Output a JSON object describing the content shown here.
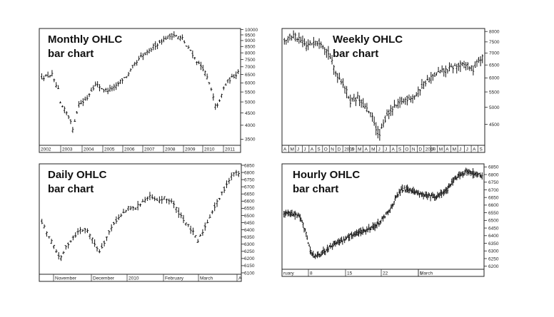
{
  "chart_data": [
    {
      "type": "ohlc",
      "title_lines": [
        "Monthly OHLC",
        "bar chart"
      ],
      "x_labels": [
        "2002",
        "2003",
        "2004",
        "2005",
        "2006",
        "2007",
        "2008",
        "2009",
        "2010",
        "2011"
      ],
      "y_ticks": [
        "10000",
        "9500",
        "9000",
        "8500",
        "8000",
        "7500",
        "7000",
        "6500",
        "6000",
        "5500",
        "5000",
        "4500",
        "4000",
        "3500"
      ],
      "y_ticks_values": [
        10000,
        9500,
        9000,
        8500,
        8000,
        7500,
        7000,
        6500,
        6000,
        5500,
        5000,
        4500,
        4000,
        3500
      ],
      "ylim": [
        3300,
        10100
      ],
      "y_scale": "log",
      "close_path": [
        [
          0,
          6300
        ],
        [
          3,
          6400
        ],
        [
          5,
          6500
        ],
        [
          6,
          6100
        ],
        [
          8,
          5600
        ],
        [
          9,
          4900
        ],
        [
          12,
          4500
        ],
        [
          14,
          4200
        ],
        [
          15,
          3800
        ],
        [
          16,
          4200
        ],
        [
          18,
          4900
        ],
        [
          20,
          5000
        ],
        [
          22,
          5200
        ],
        [
          24,
          5600
        ],
        [
          26,
          5900
        ],
        [
          28,
          5800
        ],
        [
          30,
          5600
        ],
        [
          32,
          5600
        ],
        [
          34,
          5700
        ],
        [
          36,
          5800
        ],
        [
          38,
          6100
        ],
        [
          40,
          6300
        ],
        [
          42,
          6500
        ],
        [
          44,
          7000
        ],
        [
          46,
          7300
        ],
        [
          48,
          7700
        ],
        [
          50,
          7900
        ],
        [
          52,
          8100
        ],
        [
          54,
          8500
        ],
        [
          56,
          8700
        ],
        [
          58,
          9000
        ],
        [
          60,
          9200
        ],
        [
          62,
          9400
        ],
        [
          64,
          9500
        ],
        [
          66,
          9300
        ],
        [
          68,
          9200
        ],
        [
          70,
          8500
        ],
        [
          72,
          8200
        ],
        [
          74,
          7600
        ],
        [
          76,
          7200
        ],
        [
          78,
          6900
        ],
        [
          80,
          6300
        ],
        [
          82,
          5600
        ],
        [
          84,
          4800
        ],
        [
          86,
          5000
        ],
        [
          88,
          5700
        ],
        [
          90,
          6100
        ],
        [
          92,
          6300
        ],
        [
          94,
          6500
        ],
        [
          95,
          6700
        ]
      ],
      "x_count": 96
    },
    {
      "type": "ohlc",
      "title_lines": [
        "Weekly OHLC",
        "bar chart"
      ],
      "x_labels": [
        "A",
        "M",
        "J",
        "J",
        "A",
        "S",
        "O",
        "N",
        "D",
        "2009",
        "J",
        "M",
        "A",
        "M",
        "J",
        "J",
        "A",
        "S",
        "O",
        "N",
        "D",
        "2010",
        "F",
        "M",
        "A",
        "M",
        "J",
        "J",
        "A",
        "S"
      ],
      "y_ticks": [
        "8000",
        "7500",
        "7000",
        "6500",
        "6000",
        "5500",
        "5000",
        "4500"
      ],
      "y_ticks_values": [
        8000,
        7500,
        7000,
        6500,
        6000,
        5500,
        5000,
        4500
      ],
      "ylim": [
        3950,
        8150
      ],
      "y_scale": "log",
      "close_path": [
        [
          0,
          7600
        ],
        [
          5,
          7800
        ],
        [
          8,
          7600
        ],
        [
          12,
          7300
        ],
        [
          16,
          7500
        ],
        [
          20,
          7500
        ],
        [
          24,
          7000
        ],
        [
          28,
          6200
        ],
        [
          32,
          5800
        ],
        [
          36,
          5200
        ],
        [
          40,
          5300
        ],
        [
          44,
          5000
        ],
        [
          48,
          4700
        ],
        [
          50,
          4400
        ],
        [
          52,
          4200
        ],
        [
          54,
          4500
        ],
        [
          56,
          4800
        ],
        [
          60,
          5000
        ],
        [
          64,
          5200
        ],
        [
          68,
          5300
        ],
        [
          72,
          5400
        ],
        [
          76,
          5800
        ],
        [
          80,
          6000
        ],
        [
          84,
          6200
        ],
        [
          88,
          6300
        ],
        [
          92,
          6400
        ],
        [
          96,
          6500
        ],
        [
          100,
          6500
        ],
        [
          103,
          6300
        ],
        [
          106,
          6700
        ],
        [
          108,
          6800
        ]
      ],
      "x_count": 109
    },
    {
      "type": "ohlc",
      "title_lines": [
        "Daily OHLC",
        "bar chart"
      ],
      "x_labels": [
        "November",
        "December",
        "2010",
        "February",
        "March",
        "A"
      ],
      "y_ticks": [
        "6850",
        "6800",
        "6750",
        "6700",
        "6650",
        "6600",
        "6550",
        "6500",
        "6450",
        "6400",
        "6350",
        "6300",
        "6250",
        "6200",
        "6150",
        "6100"
      ],
      "y_ticks_values": [
        6850,
        6800,
        6750,
        6700,
        6650,
        6600,
        6550,
        6500,
        6450,
        6400,
        6350,
        6300,
        6250,
        6200,
        6150,
        6100
      ],
      "ylim": [
        6090,
        6860
      ],
      "y_scale": "linear",
      "close_path": [
        [
          0,
          6450
        ],
        [
          3,
          6350
        ],
        [
          6,
          6250
        ],
        [
          8,
          6200
        ],
        [
          10,
          6280
        ],
        [
          13,
          6350
        ],
        [
          16,
          6400
        ],
        [
          19,
          6400
        ],
        [
          22,
          6300
        ],
        [
          24,
          6250
        ],
        [
          27,
          6350
        ],
        [
          30,
          6450
        ],
        [
          33,
          6500
        ],
        [
          36,
          6550
        ],
        [
          39,
          6550
        ],
        [
          42,
          6600
        ],
        [
          45,
          6630
        ],
        [
          48,
          6600
        ],
        [
          51,
          6620
        ],
        [
          54,
          6600
        ],
        [
          57,
          6520
        ],
        [
          60,
          6450
        ],
        [
          63,
          6380
        ],
        [
          65,
          6320
        ],
        [
          68,
          6420
        ],
        [
          71,
          6530
        ],
        [
          74,
          6620
        ],
        [
          77,
          6720
        ],
        [
          80,
          6800
        ],
        [
          82,
          6790
        ]
      ],
      "x_count": 83
    },
    {
      "type": "ohlc",
      "title_lines": [
        "Hourly OHLC",
        "bar chart"
      ],
      "x_labels": [
        "ruary",
        "8",
        "15",
        "22",
        "1",
        "March"
      ],
      "y_ticks": [
        "6850",
        "6800",
        "6750",
        "6700",
        "6650",
        "6600",
        "6550",
        "6500",
        "6450",
        "6400",
        "6350",
        "6300",
        "6250",
        "6200"
      ],
      "y_ticks_values": [
        6850,
        6800,
        6750,
        6700,
        6650,
        6600,
        6550,
        6500,
        6450,
        6400,
        6350,
        6300,
        6250,
        6200
      ],
      "ylim": [
        6180,
        6870
      ],
      "y_scale": "linear",
      "close_path": [
        [
          0,
          6550
        ],
        [
          10,
          6540
        ],
        [
          16,
          6520
        ],
        [
          22,
          6420
        ],
        [
          26,
          6300
        ],
        [
          30,
          6260
        ],
        [
          36,
          6280
        ],
        [
          42,
          6310
        ],
        [
          50,
          6350
        ],
        [
          58,
          6370
        ],
        [
          66,
          6400
        ],
        [
          74,
          6420
        ],
        [
          82,
          6440
        ],
        [
          90,
          6460
        ],
        [
          96,
          6500
        ],
        [
          104,
          6560
        ],
        [
          110,
          6640
        ],
        [
          116,
          6700
        ],
        [
          122,
          6710
        ],
        [
          128,
          6690
        ],
        [
          134,
          6680
        ],
        [
          140,
          6660
        ],
        [
          146,
          6660
        ],
        [
          150,
          6650
        ],
        [
          156,
          6680
        ],
        [
          162,
          6700
        ],
        [
          168,
          6770
        ],
        [
          174,
          6800
        ],
        [
          180,
          6820
        ],
        [
          186,
          6810
        ],
        [
          192,
          6800
        ],
        [
          196,
          6790
        ]
      ],
      "x_count": 197
    }
  ]
}
